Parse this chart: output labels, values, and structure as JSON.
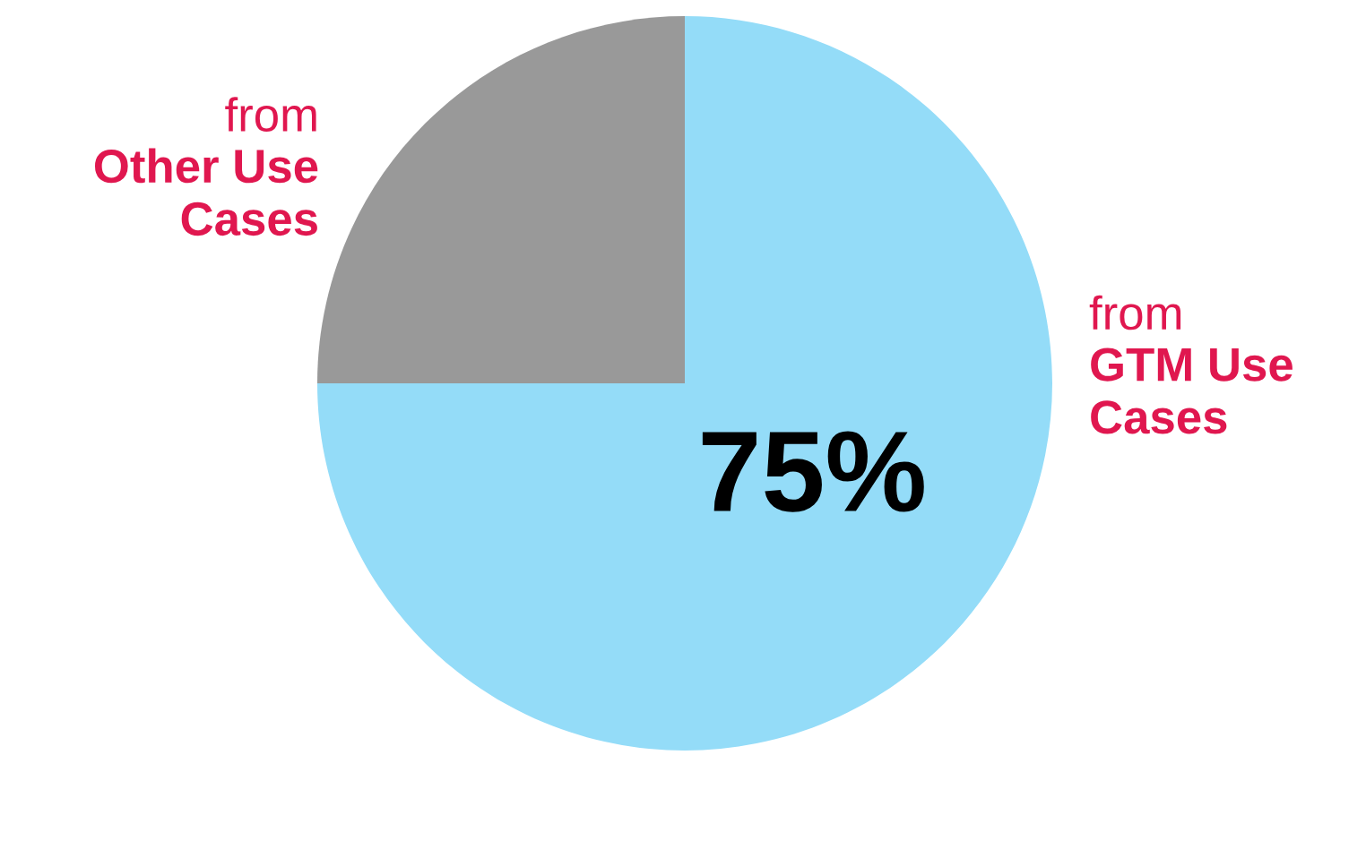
{
  "chart_data": {
    "type": "pie",
    "categories": [
      "from\nGTM Use\nCases",
      "from\nOther Use\nCases"
    ],
    "values": [
      75,
      25
    ],
    "colors": [
      "#94dcf8",
      "#999999"
    ],
    "value_labels": [
      "75%",
      null
    ]
  }
}
